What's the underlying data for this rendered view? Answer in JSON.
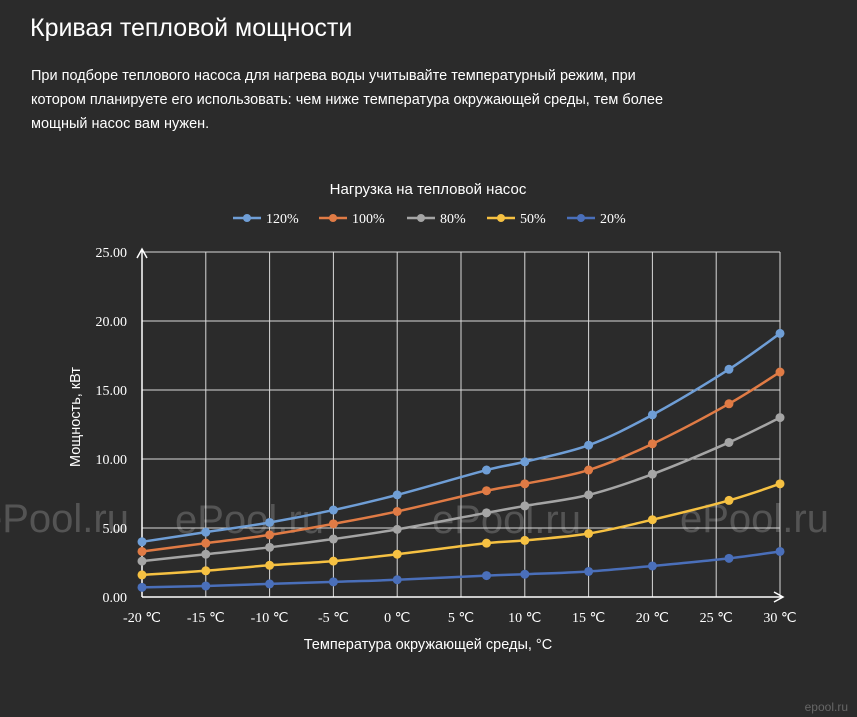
{
  "page": {
    "title": "Кривая тепловой мощности",
    "intro": "При подборе теплового насоса для нагрева воды учитывайте температурный режим, при котором планируете его использовать: чем ниже температура окружающей среды, тем более мощный насос вам нужен."
  },
  "watermarks": [
    "ePool.ru",
    "ePool.ru",
    "ePool.ru",
    "ePool.ru"
  ],
  "corner_logo": "epool.ru",
  "chart_data": {
    "type": "line",
    "title": "Нагрузка на тепловой насос",
    "xlabel": "Температура окружающей среды, °C",
    "ylabel": "Мощность, кВт",
    "xlim": [
      -20,
      30
    ],
    "ylim": [
      0,
      25
    ],
    "x_ticks": [
      -20,
      -15,
      -10,
      -5,
      0,
      5,
      10,
      15,
      20,
      25,
      30
    ],
    "x_tick_labels": [
      "-20 ℃",
      "-15 ℃",
      "-10 ℃",
      "-5 ℃",
      "0 ℃",
      "5 ℃",
      "10 ℃",
      "15 ℃",
      "20 ℃",
      "25 ℃",
      "30 ℃"
    ],
    "y_ticks": [
      0,
      5,
      10,
      15,
      20,
      25
    ],
    "y_tick_labels": [
      "0.00",
      "5.00",
      "10.00",
      "15.00",
      "20.00",
      "25.00"
    ],
    "grid": true,
    "legend_position": "top",
    "x": [
      -20,
      -15,
      -10,
      -5,
      0,
      7,
      10,
      15,
      20,
      26,
      30
    ],
    "series": [
      {
        "name": "120%",
        "color": "#6f9ed6",
        "values": [
          4.0,
          4.7,
          5.4,
          6.3,
          7.4,
          9.2,
          9.8,
          11.0,
          13.2,
          16.5,
          19.1
        ]
      },
      {
        "name": "100%",
        "color": "#e07b45",
        "values": [
          3.3,
          3.9,
          4.5,
          5.3,
          6.2,
          7.7,
          8.2,
          9.2,
          11.1,
          14.0,
          16.3
        ]
      },
      {
        "name": "80%",
        "color": "#a5a5a5",
        "values": [
          2.6,
          3.1,
          3.6,
          4.2,
          4.9,
          6.1,
          6.6,
          7.4,
          8.9,
          11.2,
          13.0
        ]
      },
      {
        "name": "50%",
        "color": "#f6c142",
        "values": [
          1.6,
          1.9,
          2.3,
          2.6,
          3.1,
          3.9,
          4.1,
          4.6,
          5.6,
          7.0,
          8.2
        ]
      },
      {
        "name": "20%",
        "color": "#4a6fba",
        "values": [
          0.7,
          0.8,
          0.95,
          1.1,
          1.25,
          1.55,
          1.65,
          1.85,
          2.25,
          2.8,
          3.3
        ]
      }
    ]
  }
}
